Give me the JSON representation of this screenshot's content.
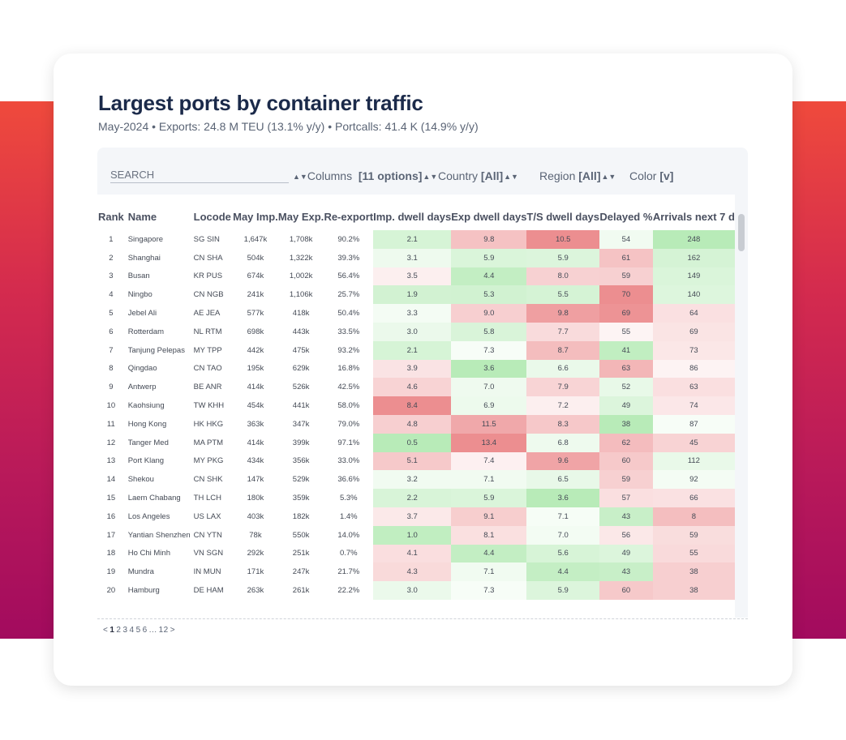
{
  "header": {
    "title": "Largest ports by container traffic",
    "subtitle": "May-2024 • Exports: 24.8 M TEU (13.1% y/y) • Portcalls: 41.4 K (14.9% y/y)"
  },
  "controls": {
    "search_placeholder": "SEARCH",
    "columns_label": "Columns",
    "columns_value": "[11 options]",
    "country_label": "Country",
    "country_value": "[All]",
    "region_label": "Region",
    "region_value": "[All]",
    "color_label": "Color",
    "color_value": "[v]"
  },
  "table": {
    "columns": [
      "Rank",
      "Name",
      "Locode",
      "May Imp.",
      "May Exp.",
      "Re-export",
      "Imp. dwell days",
      "Exp dwell days",
      "T/S dwell days",
      "Delayed %",
      "Arrivals next 7 d"
    ],
    "rows": [
      [
        "1",
        "Singapore",
        "SG SIN",
        "1,647k",
        "1,708k",
        "90.2%",
        "2.1",
        "9.8",
        "10.5",
        "54",
        "248"
      ],
      [
        "2",
        "Shanghai",
        "CN SHA",
        "504k",
        "1,322k",
        "39.3%",
        "3.1",
        "5.9",
        "5.9",
        "61",
        "162"
      ],
      [
        "3",
        "Busan",
        "KR PUS",
        "674k",
        "1,002k",
        "56.4%",
        "3.5",
        "4.4",
        "8.0",
        "59",
        "149"
      ],
      [
        "4",
        "Ningbo",
        "CN NGB",
        "241k",
        "1,106k",
        "25.7%",
        "1.9",
        "5.3",
        "5.5",
        "70",
        "140"
      ],
      [
        "5",
        "Jebel Ali",
        "AE JEA",
        "577k",
        "418k",
        "50.4%",
        "3.3",
        "9.0",
        "9.8",
        "69",
        "64"
      ],
      [
        "6",
        "Rotterdam",
        "NL RTM",
        "698k",
        "443k",
        "33.5%",
        "3.0",
        "5.8",
        "7.7",
        "55",
        "69"
      ],
      [
        "7",
        "Tanjung Pelepas",
        "MY TPP",
        "442k",
        "475k",
        "93.2%",
        "2.1",
        "7.3",
        "8.7",
        "41",
        "73"
      ],
      [
        "8",
        "Qingdao",
        "CN TAO",
        "195k",
        "629k",
        "16.8%",
        "3.9",
        "3.6",
        "6.6",
        "63",
        "86"
      ],
      [
        "9",
        "Antwerp",
        "BE ANR",
        "414k",
        "526k",
        "42.5%",
        "4.6",
        "7.0",
        "7.9",
        "52",
        "63"
      ],
      [
        "10",
        "Kaohsiung",
        "TW KHH",
        "454k",
        "441k",
        "58.0%",
        "8.4",
        "6.9",
        "7.2",
        "49",
        "74"
      ],
      [
        "11",
        "Hong Kong",
        "HK HKG",
        "363k",
        "347k",
        "79.0%",
        "4.8",
        "11.5",
        "8.3",
        "38",
        "87"
      ],
      [
        "12",
        "Tanger Med",
        "MA PTM",
        "414k",
        "399k",
        "97.1%",
        "0.5",
        "13.4",
        "6.8",
        "62",
        "45"
      ],
      [
        "13",
        "Port Klang",
        "MY PKG",
        "434k",
        "356k",
        "33.0%",
        "5.1",
        "7.4",
        "9.6",
        "60",
        "112"
      ],
      [
        "14",
        "Shekou",
        "CN SHK",
        "147k",
        "529k",
        "36.6%",
        "3.2",
        "7.1",
        "6.5",
        "59",
        "92"
      ],
      [
        "15",
        "Laem Chabang",
        "TH LCH",
        "180k",
        "359k",
        "5.3%",
        "2.2",
        "5.9",
        "3.6",
        "57",
        "66"
      ],
      [
        "16",
        "Los Angeles",
        "US LAX",
        "403k",
        "182k",
        "1.4%",
        "3.7",
        "9.1",
        "7.1",
        "43",
        "8"
      ],
      [
        "17",
        "Yantian Shenzhen",
        "CN YTN",
        "78k",
        "550k",
        "14.0%",
        "1.0",
        "8.1",
        "7.0",
        "56",
        "59"
      ],
      [
        "18",
        "Ho Chi Minh",
        "VN SGN",
        "292k",
        "251k",
        "0.7%",
        "4.1",
        "4.4",
        "5.6",
        "49",
        "55"
      ],
      [
        "19",
        "Mundra",
        "IN MUN",
        "171k",
        "247k",
        "21.7%",
        "4.3",
        "7.1",
        "4.4",
        "43",
        "38"
      ],
      [
        "20",
        "Hamburg",
        "DE HAM",
        "263k",
        "261k",
        "22.2%",
        "3.0",
        "7.3",
        "5.9",
        "60",
        "38"
      ]
    ]
  },
  "colors": {
    "good": "#b8ebb8",
    "bad": "#ec8e90",
    "neutral": "#ffffff",
    "title": "#1b2a4a"
  },
  "pagination": {
    "prev": "<",
    "pages": [
      "1",
      "2",
      "3",
      "4",
      "5",
      "6",
      "...",
      "12"
    ],
    "current": "1",
    "next": ">"
  }
}
